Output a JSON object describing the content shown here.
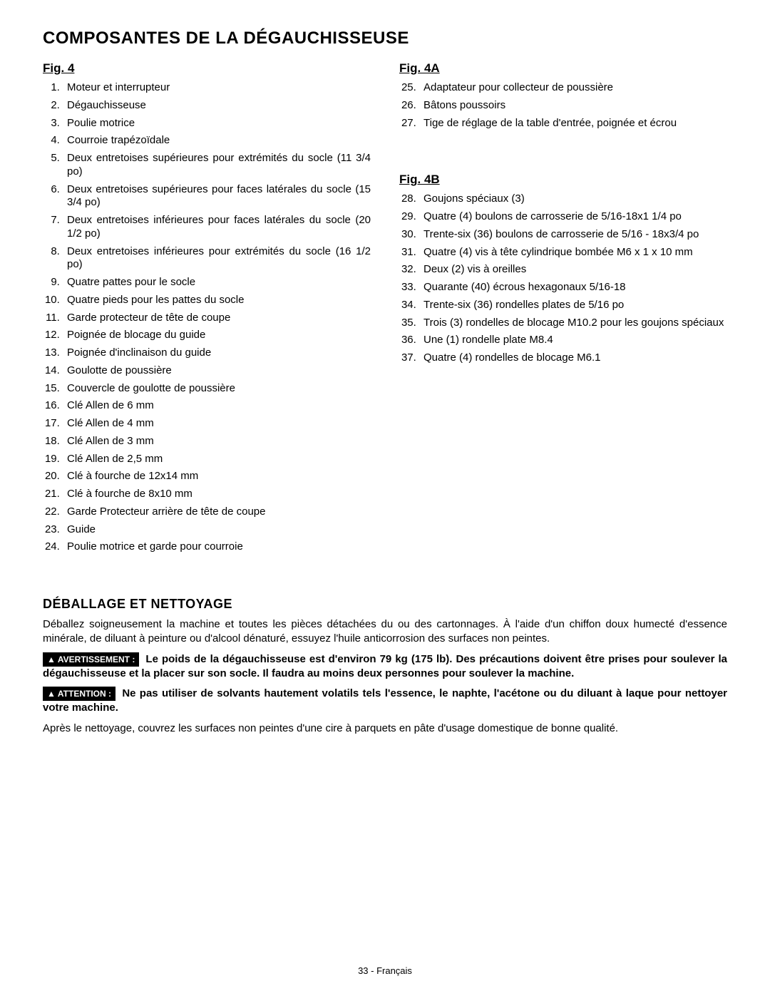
{
  "title": "COMPOSANTES DE LA DÉGAUCHISSEUSE",
  "fig4": {
    "heading": "Fig. 4",
    "start": 1,
    "items": [
      "Moteur et interrupteur",
      "Dégauchisseuse",
      "Poulie motrice",
      "Courroie trapézoïdale",
      "Deux entretoises supérieures pour extrémités du socle (11 3/4 po)",
      "Deux entretoises supérieures pour faces latérales du socle (15 3/4 po)",
      "Deux entretoises inférieures pour faces latérales du socle (20 1/2 po)",
      "Deux entretoises inférieures pour extrémités du socle (16 1/2 po)",
      "Quatre pattes pour le socle",
      "Quatre pieds pour les pattes du socle",
      "Garde protecteur de tête de coupe",
      "Poignée de blocage du guide",
      "Poignée d'inclinaison du guide",
      "Goulotte de poussière",
      "Couvercle de goulotte de poussière",
      "Clé Allen de 6 mm",
      "Clé Allen de 4 mm",
      "Clé Allen de 3 mm",
      "Clé Allen de 2,5 mm",
      "Clé à fourche de 12x14 mm",
      "Clé à fourche de 8x10 mm",
      "Garde Protecteur arrière de tête de coupe",
      "Guide",
      "Poulie motrice et garde pour courroie"
    ]
  },
  "fig4a": {
    "heading": "Fig. 4A",
    "start": 25,
    "items": [
      "Adaptateur pour collecteur de poussière",
      "Bâtons poussoirs",
      "Tige de réglage de la table d'entrée, poignée et écrou"
    ]
  },
  "fig4b": {
    "heading": "Fig. 4B",
    "start": 28,
    "items": [
      "Goujons spéciaux (3)",
      "Quatre (4) boulons de carrosserie de 5/16-18x1 1/4 po",
      "Trente-six (36) boulons de carrosserie de 5/16 - 18x3/4 po",
      "Quatre (4) vis à tête cylindrique bombée M6 x 1 x 10 mm",
      "Deux (2) vis à oreilles",
      "Quarante (40) écrous hexagonaux 5/16-18",
      "Trente-six (36) rondelles plates de 5/16 po",
      "Trois (3) rondelles de blocage M10.2 pour les goujons spéciaux",
      "Une (1) rondelle plate M8.4",
      " Quatre (4) rondelles de blocage M6.1"
    ]
  },
  "sectionHeading": "DÉBALLAGE ET NETTOYAGE",
  "para1": "Déballez soigneusement la machine et toutes les pièces détachées du ou des cartonnages. À l'aide d'un chiffon doux humecté d'essence minérale, de diluant à peinture ou d'alcool dénaturé, essuyez l'huile anticorrosion des surfaces non peintes.",
  "warning": {
    "label": "AVERTISSEMENT :",
    "text": "Le poids de la dégauchisseuse est d'environ 79 kg (175 lb). Des précautions doivent être prises pour soulever la dégauchisseuse et la placer sur son socle. Il faudra au moins deux personnes pour soulever la machine."
  },
  "attention": {
    "label": "ATTENTION  :",
    "text": "Ne pas utiliser de solvants hautement volatils tels l'essence, le naphte, l'acétone ou du diluant à laque pour nettoyer votre machine."
  },
  "para2": "Après le nettoyage, couvrez les surfaces non peintes d'une cire à parquets en pâte d'usage domestique de bonne qualité.",
  "footer": "33 - Français",
  "colors": {
    "background": "#ffffff",
    "text": "#000000",
    "labelBg": "#000000",
    "labelText": "#ffffff"
  }
}
